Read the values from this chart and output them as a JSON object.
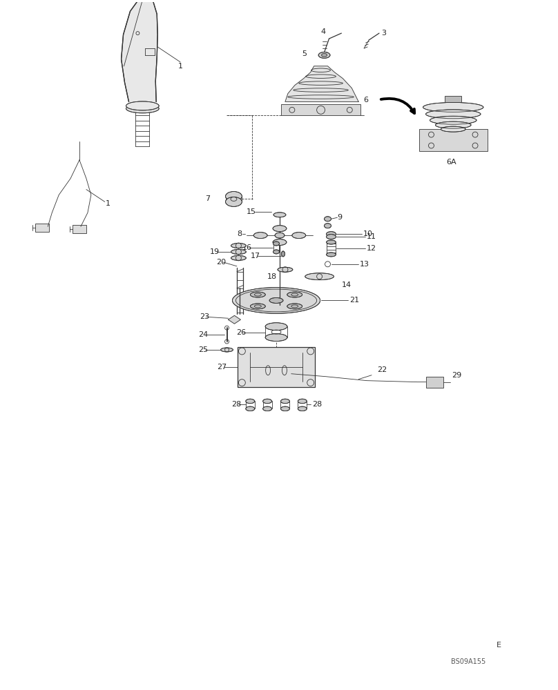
{
  "bg_color": "#ffffff",
  "line_color": "#333333",
  "text_color": "#222222",
  "fig_width": 8.08,
  "fig_height": 10.0,
  "watermark": "BS09A155",
  "letter_mark": "E"
}
